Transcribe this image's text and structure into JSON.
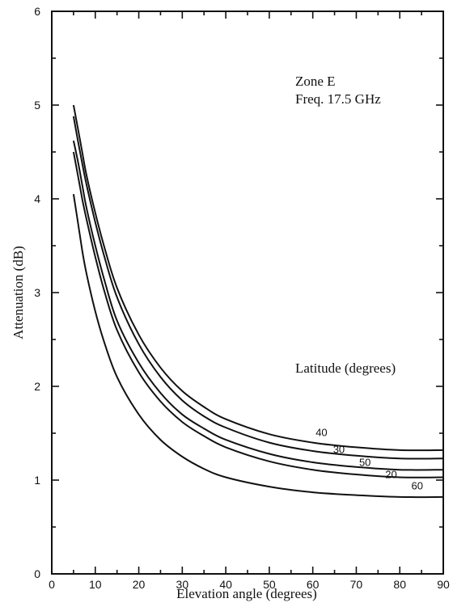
{
  "chart_data": {
    "type": "line",
    "xlabel": "Elevation angle (degrees)",
    "ylabel": "Attenuation (dB)",
    "xlim": [
      0,
      90
    ],
    "ylim": [
      0,
      6
    ],
    "x_ticks": [
      "0",
      "10",
      "20",
      "30",
      "40",
      "50",
      "60",
      "70",
      "80",
      "90"
    ],
    "y_ticks": [
      "0",
      "1",
      "2",
      "3",
      "4",
      "5",
      "6"
    ],
    "grid": false,
    "annotations": {
      "zone": "Zone E",
      "freq": "Freq. 17.5 GHz",
      "latitude_header": "Latitude (degrees)"
    },
    "series": [
      {
        "name": "40",
        "x": [
          5,
          6,
          7,
          8,
          10,
          12,
          15,
          20,
          25,
          30,
          35,
          40,
          50,
          60,
          70,
          80,
          90
        ],
        "values": [
          5.0,
          4.75,
          4.5,
          4.25,
          3.85,
          3.5,
          3.05,
          2.55,
          2.2,
          1.95,
          1.78,
          1.65,
          1.49,
          1.4,
          1.35,
          1.32,
          1.32
        ]
      },
      {
        "name": "30",
        "x": [
          5,
          6,
          7,
          8,
          10,
          12,
          15,
          20,
          25,
          30,
          35,
          40,
          50,
          60,
          70,
          80,
          90
        ],
        "values": [
          4.88,
          4.62,
          4.38,
          4.15,
          3.75,
          3.4,
          2.95,
          2.45,
          2.1,
          1.85,
          1.68,
          1.56,
          1.4,
          1.31,
          1.26,
          1.23,
          1.23
        ]
      },
      {
        "name": "50",
        "x": [
          5,
          6,
          7,
          8,
          10,
          12,
          15,
          20,
          25,
          30,
          35,
          40,
          50,
          60,
          70,
          80,
          90
        ],
        "values": [
          4.62,
          4.4,
          4.15,
          3.9,
          3.5,
          3.15,
          2.7,
          2.25,
          1.93,
          1.7,
          1.55,
          1.43,
          1.28,
          1.19,
          1.14,
          1.11,
          1.11
        ]
      },
      {
        "name": "20",
        "x": [
          5,
          6,
          7,
          8,
          10,
          12,
          15,
          20,
          25,
          30,
          35,
          40,
          50,
          60,
          70,
          80,
          90
        ],
        "values": [
          4.5,
          4.25,
          4.0,
          3.78,
          3.38,
          3.03,
          2.6,
          2.15,
          1.84,
          1.62,
          1.47,
          1.35,
          1.2,
          1.11,
          1.06,
          1.03,
          1.03
        ]
      },
      {
        "name": "60",
        "x": [
          5,
          6,
          7,
          8,
          10,
          12,
          15,
          20,
          25,
          30,
          35,
          40,
          50,
          60,
          70,
          80,
          90
        ],
        "values": [
          4.05,
          3.75,
          3.45,
          3.2,
          2.8,
          2.48,
          2.1,
          1.7,
          1.43,
          1.25,
          1.12,
          1.03,
          0.93,
          0.87,
          0.84,
          0.82,
          0.82
        ]
      }
    ],
    "curve_labels": [
      {
        "text": "40",
        "x": 62,
        "y": 1.47
      },
      {
        "text": "30",
        "x": 66,
        "y": 1.29
      },
      {
        "text": "50",
        "x": 72,
        "y": 1.15
      },
      {
        "text": "20",
        "x": 78,
        "y": 1.02
      },
      {
        "text": "60",
        "x": 84,
        "y": 0.9
      }
    ]
  }
}
